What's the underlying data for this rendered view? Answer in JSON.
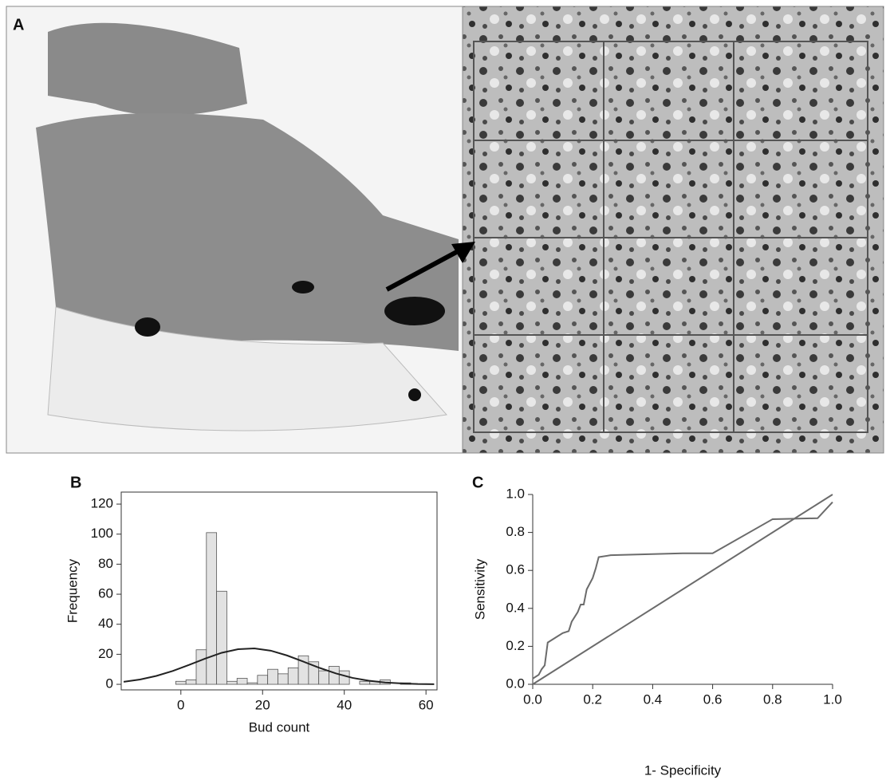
{
  "panel_a": {
    "label": "A"
  },
  "chart_data": [
    {
      "type": "histogram",
      "panel": "B",
      "x_label": "Bud count",
      "y_label": "Frequency",
      "bins": [
        -1.25,
        1.25,
        3.75,
        6.25,
        8.75,
        11.25,
        13.75,
        16.25,
        18.75,
        21.25,
        23.75,
        26.25,
        28.75,
        31.25,
        33.75,
        36.25,
        38.75,
        41.25,
        43.75,
        46.25,
        48.75,
        51.25,
        53.75,
        56.25
      ],
      "counts": [
        2,
        3,
        23,
        101,
        62,
        2,
        4,
        1,
        6,
        10,
        7,
        11,
        19,
        15,
        9,
        12,
        9,
        0,
        2,
        2,
        3,
        0,
        1
      ],
      "color": "#e2e2e2",
      "curve": {
        "x": [
          -14,
          -10,
          -6,
          -2,
          2,
          6,
          10,
          14,
          18,
          22,
          26,
          30,
          34,
          38,
          42,
          46,
          50,
          54,
          58,
          62
        ],
        "values": [
          1.7,
          3.2,
          5.6,
          8.9,
          12.9,
          17.2,
          21.0,
          23.4,
          23.9,
          22.4,
          19.2,
          15.1,
          10.9,
          7.2,
          4.3,
          2.4,
          1.2,
          0.6,
          0.2,
          0.1
        ],
        "color": "#222222"
      },
      "xlim": [
        -14.6,
        62.7
      ],
      "ylim": [
        -3.7,
        128
      ],
      "xticks": [
        0,
        20,
        40,
        60
      ],
      "yticks": [
        0,
        20,
        40,
        60,
        80,
        100,
        120
      ]
    },
    {
      "type": "line",
      "panel": "C",
      "x_label": "1- Specificity",
      "y_label": "Sensitivity",
      "series": [
        {
          "color": "#6b6b6b",
          "x": [
            0,
            0.02,
            0.03,
            0.04,
            0.05,
            0.08,
            0.1,
            0.12,
            0.13,
            0.15,
            0.16,
            0.17,
            0.18,
            0.19,
            0.2,
            0.21,
            0.22,
            0.26,
            0.5,
            0.6,
            0.8,
            0.95,
            1.0
          ],
          "values": [
            0.03,
            0.05,
            0.08,
            0.1,
            0.22,
            0.25,
            0.27,
            0.28,
            0.33,
            0.38,
            0.42,
            0.42,
            0.5,
            0.53,
            0.56,
            0.61,
            0.67,
            0.68,
            0.69,
            0.69,
            0.87,
            0.875,
            0.96
          ]
        },
        {
          "color": "#6b6b6b",
          "x": [
            0,
            1
          ],
          "values": [
            0,
            1
          ]
        }
      ],
      "xlim": [
        0,
        1
      ],
      "ylim": [
        0,
        1
      ],
      "xticks": [
        {
          "value": 0,
          "label": "0.0"
        },
        {
          "value": 0.2,
          "label": "0.2"
        },
        {
          "value": 0.4,
          "label": "0.4"
        },
        {
          "value": 0.6,
          "label": "0.6"
        },
        {
          "value": 0.8,
          "label": "0.8"
        },
        {
          "value": 1,
          "label": "1.0"
        }
      ],
      "yticks": [
        {
          "value": 0,
          "label": "0.0"
        },
        {
          "value": 0.2,
          "label": "0.2"
        },
        {
          "value": 0.4,
          "label": "0.4"
        },
        {
          "value": 0.6,
          "label": "0.6"
        },
        {
          "value": 0.8,
          "label": "0.8"
        },
        {
          "value": 1,
          "label": "1.0"
        }
      ]
    }
  ]
}
